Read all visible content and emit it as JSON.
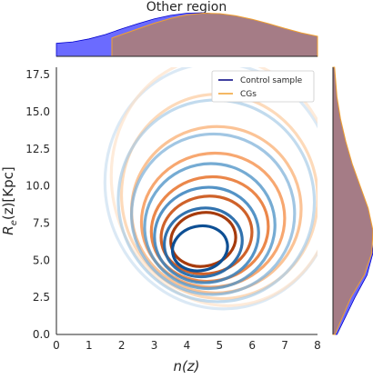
{
  "chart_data": {
    "type": "contour",
    "title": "Other region",
    "xlabel": "n(z)",
    "ylabel": "R_e(z)[Kpc]",
    "xlim": [
      0,
      8
    ],
    "ylim": [
      0,
      18
    ],
    "xticks": [
      "0",
      "1",
      "2",
      "3",
      "4",
      "5",
      "6",
      "7",
      "8"
    ],
    "yticks": [
      "0.0",
      "2.5",
      "5.0",
      "7.5",
      "10.0",
      "12.5",
      "15.0",
      "17.5"
    ],
    "legend_position": "top-right",
    "series": [
      {
        "name": "Control sample",
        "color": "#1f5fa8",
        "kde_contours": [
          {
            "cx": 4.4,
            "cy": 5.8,
            "rx": 0.85,
            "ry": 1.5,
            "level": 1.0
          },
          {
            "cx": 4.5,
            "cy": 6.2,
            "rx": 1.2,
            "ry": 2.3,
            "level": 0.85
          },
          {
            "cx": 4.6,
            "cy": 6.7,
            "rx": 1.6,
            "ry": 3.2,
            "level": 0.7
          },
          {
            "cx": 4.7,
            "cy": 7.3,
            "rx": 2.0,
            "ry": 4.2,
            "level": 0.55
          },
          {
            "cx": 4.8,
            "cy": 8.1,
            "rx": 2.5,
            "ry": 5.4,
            "level": 0.42
          },
          {
            "cx": 4.9,
            "cy": 9.0,
            "rx": 3.0,
            "ry": 6.8,
            "level": 0.3
          },
          {
            "cx": 5.0,
            "cy": 10.0,
            "rx": 3.5,
            "ry": 8.3,
            "level": 0.2
          }
        ],
        "n_marginal": [
          {
            "x": 0.0,
            "d": 0.3
          },
          {
            "x": 0.5,
            "d": 0.33
          },
          {
            "x": 1.0,
            "d": 0.4
          },
          {
            "x": 1.5,
            "d": 0.5
          },
          {
            "x": 2.0,
            "d": 0.63
          },
          {
            "x": 2.5,
            "d": 0.75
          },
          {
            "x": 3.0,
            "d": 0.86
          },
          {
            "x": 3.5,
            "d": 0.94
          },
          {
            "x": 4.0,
            "d": 0.99
          },
          {
            "x": 4.5,
            "d": 1.0
          },
          {
            "x": 5.0,
            "d": 0.96
          },
          {
            "x": 5.5,
            "d": 0.88
          },
          {
            "x": 6.0,
            "d": 0.77
          },
          {
            "x": 6.5,
            "d": 0.63
          },
          {
            "x": 7.0,
            "d": 0.5
          },
          {
            "x": 7.5,
            "d": 0.4
          },
          {
            "x": 8.0,
            "d": 0.33
          }
        ],
        "re_marginal": [
          {
            "y": 0.0,
            "d": 0.1
          },
          {
            "y": 2.5,
            "d": 0.55
          },
          {
            "y": 4.0,
            "d": 0.85
          },
          {
            "y": 5.5,
            "d": 1.0
          },
          {
            "y": 7.0,
            "d": 0.95
          },
          {
            "y": 8.5,
            "d": 0.78
          },
          {
            "y": 10.0,
            "d": 0.58
          },
          {
            "y": 11.5,
            "d": 0.4
          },
          {
            "y": 13.0,
            "d": 0.25
          },
          {
            "y": 14.5,
            "d": 0.14
          },
          {
            "y": 16.0,
            "d": 0.07
          },
          {
            "y": 18.0,
            "d": 0.03
          }
        ]
      },
      {
        "name": "CGs",
        "color": "#f0a030",
        "kde_contours": [
          {
            "cx": 4.5,
            "cy": 6.4,
            "rx": 1.0,
            "ry": 1.8,
            "level": 1.0
          },
          {
            "cx": 4.6,
            "cy": 6.7,
            "rx": 1.4,
            "ry": 2.6,
            "level": 0.85
          },
          {
            "cx": 4.7,
            "cy": 7.1,
            "rx": 1.8,
            "ry": 3.5,
            "level": 0.7
          },
          {
            "cx": 4.8,
            "cy": 7.7,
            "rx": 2.2,
            "ry": 4.5,
            "level": 0.55
          },
          {
            "cx": 4.9,
            "cy": 8.4,
            "rx": 2.6,
            "ry": 5.6,
            "level": 0.42
          },
          {
            "cx": 5.0,
            "cy": 9.3,
            "rx": 3.0,
            "ry": 6.9,
            "level": 0.3
          },
          {
            "cx": 5.1,
            "cy": 10.3,
            "rx": 3.4,
            "ry": 8.4,
            "level": 0.2
          }
        ],
        "n_marginal": [
          {
            "x": 1.7,
            "d": 0.42
          },
          {
            "x": 2.0,
            "d": 0.5
          },
          {
            "x": 2.5,
            "d": 0.63
          },
          {
            "x": 3.0,
            "d": 0.76
          },
          {
            "x": 3.5,
            "d": 0.87
          },
          {
            "x": 4.0,
            "d": 0.95
          },
          {
            "x": 4.5,
            "d": 0.99
          },
          {
            "x": 5.0,
            "d": 0.98
          },
          {
            "x": 5.5,
            "d": 0.93
          },
          {
            "x": 6.0,
            "d": 0.85
          },
          {
            "x": 6.5,
            "d": 0.75
          },
          {
            "x": 7.0,
            "d": 0.64
          },
          {
            "x": 7.5,
            "d": 0.54
          },
          {
            "x": 8.0,
            "d": 0.46
          }
        ],
        "re_marginal": [
          {
            "y": 0.0,
            "d": 0.05
          },
          {
            "y": 2.5,
            "d": 0.45
          },
          {
            "y": 4.0,
            "d": 0.78
          },
          {
            "y": 5.5,
            "d": 0.97
          },
          {
            "y": 7.0,
            "d": 1.0
          },
          {
            "y": 8.5,
            "d": 0.88
          },
          {
            "y": 10.0,
            "d": 0.68
          },
          {
            "y": 11.5,
            "d": 0.48
          },
          {
            "y": 13.0,
            "d": 0.32
          },
          {
            "y": 14.5,
            "d": 0.19
          },
          {
            "y": 16.0,
            "d": 0.1
          },
          {
            "y": 18.0,
            "d": 0.04
          }
        ]
      }
    ]
  },
  "marginal_fill": {
    "control_only": "#6b6bff",
    "overlap": "#a57c86"
  }
}
